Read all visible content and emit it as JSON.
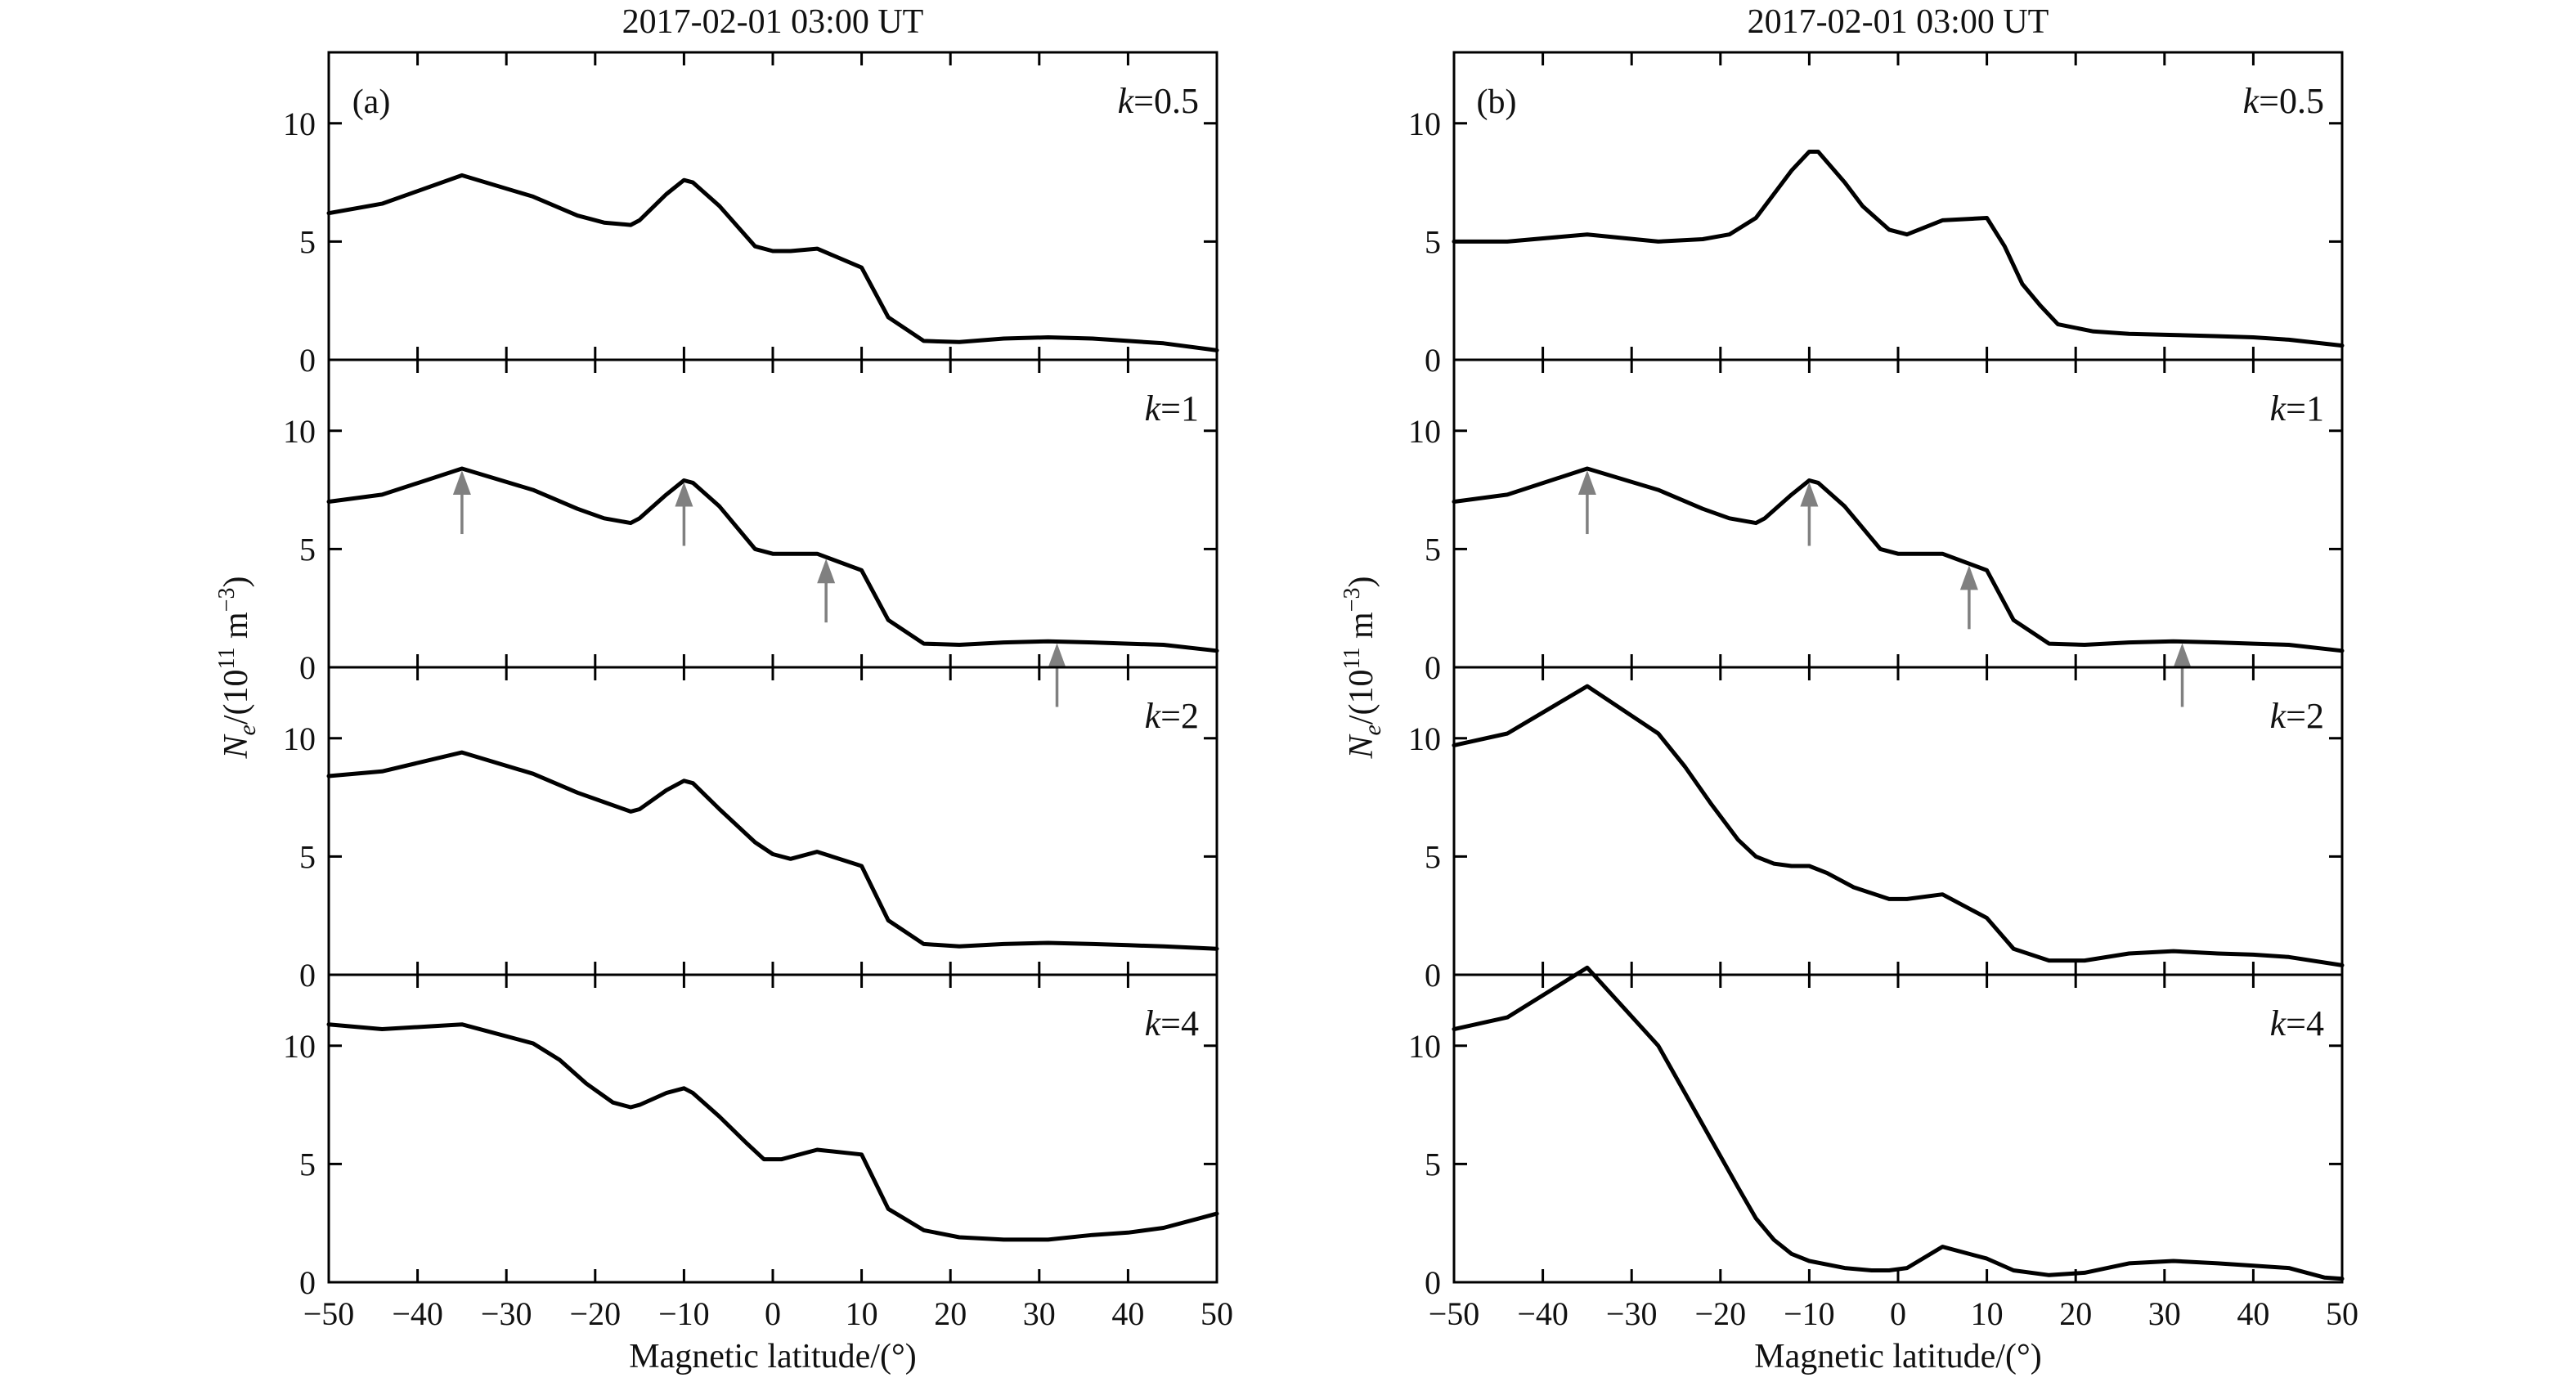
{
  "chart_data": [
    {
      "type": "line",
      "panel_label": "(a)",
      "title": "2017-02-01 03:00 UT",
      "xlabel": "Magnetic latitude/(°)",
      "ylabel_main": "N",
      "ylabel_sub": "e",
      "ylabel_unit": "/(10",
      "ylabel_exp": "11",
      "ylabel_unit2": " m",
      "ylabel_exp2": "−3",
      "ylabel_close": ")",
      "xlim": [
        -50,
        50
      ],
      "ylim": [
        0,
        13
      ],
      "xticks": [
        "−50",
        "−40",
        "−30",
        "−20",
        "−10",
        "0",
        "10",
        "20",
        "30",
        "40",
        "50"
      ],
      "yticks": [
        "0",
        "5",
        "10"
      ],
      "grid": false,
      "subplots": [
        {
          "k_prefix": "k",
          "k_value": "=0.5",
          "x": [
            -50,
            -44,
            -35,
            -27,
            -22,
            -19,
            -16,
            -15,
            -12,
            -10,
            -9,
            -6,
            -2,
            0,
            2,
            5,
            10,
            13,
            17,
            21,
            26,
            31,
            36,
            40,
            44,
            50
          ],
          "y": [
            6.2,
            6.6,
            7.8,
            6.9,
            6.1,
            5.8,
            5.7,
            5.9,
            7.0,
            7.6,
            7.5,
            6.5,
            4.8,
            4.6,
            4.6,
            4.7,
            3.9,
            1.8,
            0.8,
            0.75,
            0.9,
            0.95,
            0.9,
            0.8,
            0.7,
            0.4
          ],
          "arrows_at": []
        },
        {
          "k_prefix": "k",
          "k_value": "=1",
          "x": [
            -50,
            -44,
            -35,
            -27,
            -22,
            -19,
            -16,
            -15,
            -12,
            -10,
            -9,
            -6,
            -2,
            0,
            2,
            5,
            10,
            13,
            17,
            21,
            26,
            31,
            36,
            40,
            44,
            50
          ],
          "y": [
            7.0,
            7.3,
            8.4,
            7.5,
            6.7,
            6.3,
            6.1,
            6.3,
            7.3,
            7.9,
            7.8,
            6.8,
            5.0,
            4.8,
            4.8,
            4.8,
            4.1,
            2.0,
            1.0,
            0.95,
            1.05,
            1.1,
            1.05,
            1.0,
            0.95,
            0.7
          ],
          "arrows_at": [
            -35,
            -10,
            6,
            32
          ]
        },
        {
          "k_prefix": "k",
          "k_value": "=2",
          "x": [
            -50,
            -44,
            -35,
            -27,
            -22,
            -19,
            -16,
            -15,
            -12,
            -10,
            -9,
            -6,
            -2,
            0,
            2,
            5,
            10,
            13,
            17,
            21,
            26,
            31,
            36,
            40,
            44,
            50
          ],
          "y": [
            8.4,
            8.6,
            9.4,
            8.5,
            7.7,
            7.3,
            6.9,
            7.0,
            7.8,
            8.2,
            8.1,
            7.0,
            5.6,
            5.1,
            4.9,
            5.2,
            4.6,
            2.3,
            1.3,
            1.2,
            1.3,
            1.35,
            1.3,
            1.25,
            1.2,
            1.1
          ],
          "arrows_at": []
        },
        {
          "k_prefix": "k",
          "k_value": "=4",
          "x": [
            -50,
            -44,
            -35,
            -27,
            -24,
            -21,
            -18,
            -16,
            -15,
            -12,
            -10,
            -9,
            -6,
            -3,
            -1,
            1,
            5,
            10,
            13,
            17,
            21,
            26,
            31,
            36,
            40,
            44,
            48,
            50
          ],
          "y": [
            10.9,
            10.7,
            10.9,
            10.1,
            9.4,
            8.4,
            7.6,
            7.4,
            7.5,
            8.0,
            8.2,
            8.0,
            7.0,
            5.9,
            5.2,
            5.2,
            5.6,
            5.4,
            3.1,
            2.2,
            1.9,
            1.8,
            1.8,
            2.0,
            2.1,
            2.3,
            2.7,
            2.9
          ],
          "arrows_at": []
        }
      ]
    },
    {
      "type": "line",
      "panel_label": "(b)",
      "title": "2017-02-01 03:00 UT",
      "xlabel": "Magnetic latitude/(°)",
      "ylabel_main": "N",
      "ylabel_sub": "e",
      "ylabel_unit": "/(10",
      "ylabel_exp": "11",
      "ylabel_unit2": " m",
      "ylabel_exp2": "−3",
      "ylabel_close": ")",
      "xlim": [
        -50,
        50
      ],
      "ylim": [
        0,
        13
      ],
      "xticks": [
        "−50",
        "−40",
        "−30",
        "−20",
        "−10",
        "0",
        "10",
        "20",
        "30",
        "40",
        "50"
      ],
      "yticks": [
        "0",
        "5",
        "10"
      ],
      "grid": false,
      "subplots": [
        {
          "k_prefix": "k",
          "k_value": "=0.5",
          "x": [
            -50,
            -44,
            -35,
            -27,
            -22,
            -19,
            -16,
            -14,
            -12,
            -10,
            -9,
            -6,
            -4,
            -1,
            1,
            5,
            10,
            12,
            14,
            16,
            18,
            22,
            26,
            31,
            36,
            40,
            44,
            50
          ],
          "y": [
            5.0,
            5.0,
            5.3,
            5.0,
            5.1,
            5.3,
            6.0,
            7.0,
            8.0,
            8.8,
            8.8,
            7.5,
            6.5,
            5.5,
            5.3,
            5.9,
            6.0,
            4.8,
            3.2,
            2.3,
            1.5,
            1.2,
            1.1,
            1.05,
            1.0,
            0.95,
            0.85,
            0.6
          ],
          "arrows_at": []
        },
        {
          "k_prefix": "k",
          "k_value": "=1",
          "x": [
            -50,
            -44,
            -35,
            -27,
            -22,
            -19,
            -16,
            -15,
            -12,
            -10,
            -9,
            -6,
            -2,
            0,
            2,
            5,
            10,
            13,
            17,
            21,
            26,
            31,
            36,
            40,
            44,
            50
          ],
          "y": [
            7.0,
            7.3,
            8.4,
            7.5,
            6.7,
            6.3,
            6.1,
            6.3,
            7.3,
            7.9,
            7.8,
            6.8,
            5.0,
            4.8,
            4.8,
            4.8,
            4.1,
            2.0,
            1.0,
            0.95,
            1.05,
            1.1,
            1.05,
            1.0,
            0.95,
            0.7
          ],
          "arrows_at": [
            -35,
            -10,
            8,
            32
          ]
        },
        {
          "k_prefix": "k",
          "k_value": "=2",
          "x": [
            -50,
            -44,
            -35,
            -27,
            -24,
            -21,
            -18,
            -16,
            -14,
            -12,
            -10,
            -8,
            -5,
            -1,
            1,
            5,
            10,
            13,
            17,
            21,
            26,
            31,
            36,
            40,
            44,
            50
          ],
          "y": [
            9.7,
            10.2,
            12.2,
            10.2,
            8.8,
            7.2,
            5.7,
            5.0,
            4.7,
            4.6,
            4.6,
            4.3,
            3.7,
            3.2,
            3.2,
            3.4,
            2.4,
            1.1,
            0.6,
            0.6,
            0.9,
            1.0,
            0.9,
            0.85,
            0.75,
            0.4
          ],
          "arrows_at": []
        },
        {
          "k_prefix": "k",
          "k_value": "=4",
          "x": [
            -50,
            -44,
            -35,
            -27,
            -24,
            -21,
            -18,
            -16,
            -14,
            -12,
            -10,
            -6,
            -3,
            -1,
            1,
            5,
            10,
            13,
            17,
            21,
            26,
            31,
            36,
            40,
            44,
            48,
            50
          ],
          "y": [
            10.7,
            11.2,
            13.3,
            10.0,
            8.0,
            6.0,
            4.0,
            2.7,
            1.8,
            1.2,
            0.9,
            0.6,
            0.5,
            0.5,
            0.6,
            1.5,
            1.0,
            0.5,
            0.3,
            0.4,
            0.8,
            0.9,
            0.8,
            0.7,
            0.6,
            0.2,
            0.15
          ],
          "arrows_at": []
        }
      ]
    }
  ]
}
